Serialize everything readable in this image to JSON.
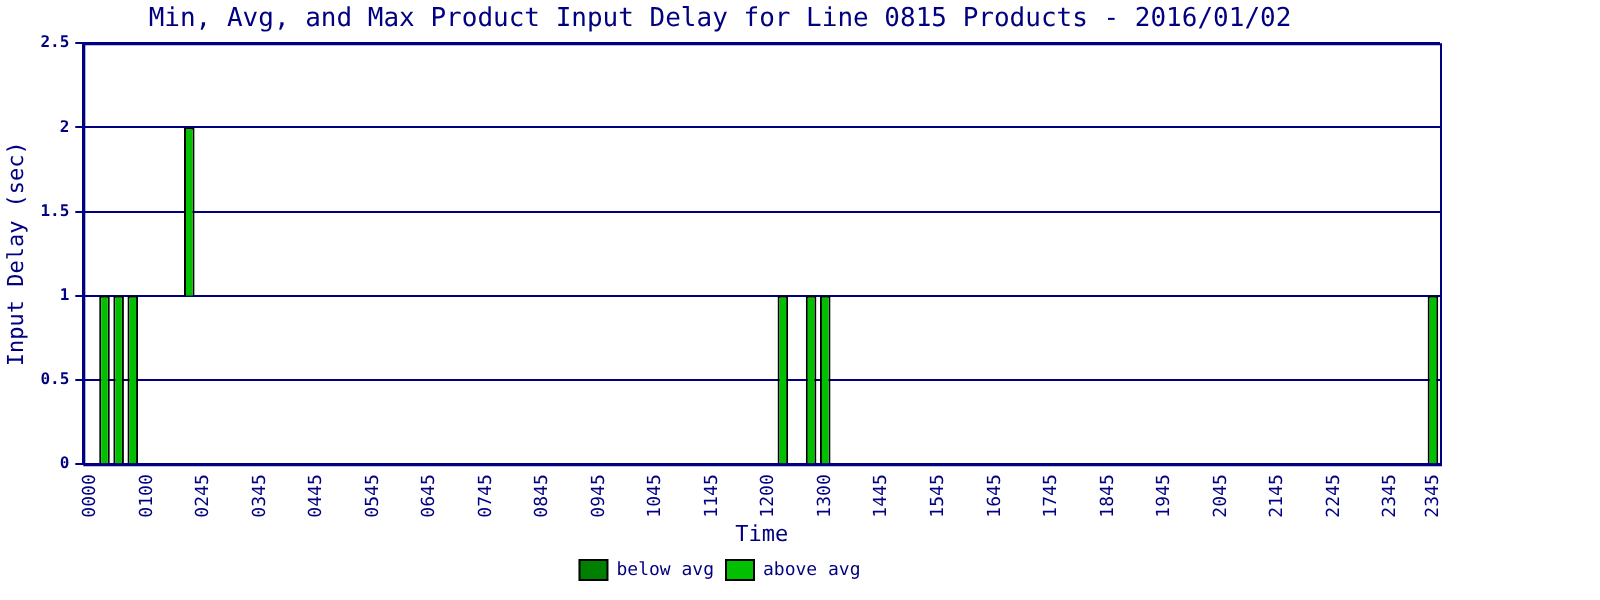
{
  "chart_data": {
    "type": "bar",
    "title": "Min, Avg, and Max Product Input Delay for Line 0815 Products - 2016/01/02",
    "xlabel": "Time",
    "ylabel": "Input Delay (sec)",
    "categories": [
      "0000",
      null,
      null,
      null,
      "0100",
      null,
      null,
      null,
      "0245",
      null,
      null,
      null,
      "0345",
      null,
      null,
      null,
      "0445",
      null,
      null,
      null,
      "0545",
      null,
      null,
      null,
      "0645",
      null,
      null,
      null,
      "0745",
      null,
      null,
      null,
      "0845",
      null,
      null,
      null,
      "0945",
      null,
      null,
      null,
      "1045",
      null,
      null,
      null,
      "1145",
      null,
      null,
      null,
      "1200",
      null,
      null,
      null,
      "1300",
      null,
      null,
      null,
      "1445",
      null,
      null,
      null,
      "1545",
      null,
      null,
      null,
      "1645",
      null,
      null,
      null,
      "1745",
      null,
      null,
      null,
      "1845",
      null,
      null,
      null,
      "1945",
      null,
      null,
      null,
      "2045",
      null,
      null,
      null,
      "2145",
      null,
      null,
      null,
      "2245",
      null,
      null,
      null,
      "2345",
      null,
      null,
      "2345"
    ],
    "series": [
      {
        "name": "below avg",
        "color": "#008000",
        "values": [
          null,
          null,
          null,
          null,
          null,
          null,
          null,
          null,
          null,
          null,
          null,
          null,
          null,
          null,
          null,
          null,
          null,
          null,
          null,
          null,
          null,
          null,
          null,
          null,
          null,
          null,
          null,
          null,
          null,
          null,
          null,
          null,
          null,
          null,
          null,
          null,
          null,
          null,
          null,
          null,
          null,
          null,
          null,
          null,
          null,
          null,
          null,
          null,
          null,
          null,
          null,
          null,
          null,
          null,
          null,
          null,
          null,
          null,
          null,
          null,
          null,
          null,
          null,
          null,
          null,
          null,
          null,
          null,
          null,
          null,
          null,
          null,
          null,
          null,
          null,
          null,
          null,
          null,
          null,
          null,
          null,
          null,
          null,
          null,
          null,
          null,
          null,
          null,
          null,
          null,
          null,
          null,
          null,
          null,
          null,
          null
        ]
      },
      {
        "name": "above avg",
        "color": "#00c000",
        "base": [
          null,
          0,
          0,
          0,
          null,
          null,
          null,
          1,
          null,
          null,
          null,
          null,
          null,
          null,
          null,
          null,
          null,
          null,
          null,
          null,
          null,
          null,
          null,
          null,
          null,
          null,
          null,
          null,
          null,
          null,
          null,
          null,
          null,
          null,
          null,
          null,
          null,
          null,
          null,
          null,
          null,
          null,
          null,
          null,
          null,
          null,
          null,
          null,
          null,
          0,
          null,
          0,
          0,
          null,
          null,
          null,
          null,
          null,
          null,
          null,
          null,
          null,
          null,
          null,
          null,
          null,
          null,
          null,
          null,
          null,
          null,
          null,
          null,
          null,
          null,
          null,
          null,
          null,
          null,
          null,
          null,
          null,
          null,
          null,
          null,
          null,
          null,
          null,
          null,
          null,
          null,
          null,
          null,
          null,
          null,
          0
        ],
        "values": [
          null,
          1,
          1,
          1,
          null,
          null,
          null,
          1,
          null,
          null,
          null,
          null,
          null,
          null,
          null,
          null,
          null,
          null,
          null,
          null,
          null,
          null,
          null,
          null,
          null,
          null,
          null,
          null,
          null,
          null,
          null,
          null,
          null,
          null,
          null,
          null,
          null,
          null,
          null,
          null,
          null,
          null,
          null,
          null,
          null,
          null,
          null,
          null,
          null,
          1,
          null,
          1,
          1,
          null,
          null,
          null,
          null,
          null,
          null,
          null,
          null,
          null,
          null,
          null,
          null,
          null,
          null,
          null,
          null,
          null,
          null,
          null,
          null,
          null,
          null,
          null,
          null,
          null,
          null,
          null,
          null,
          null,
          null,
          null,
          null,
          null,
          null,
          null,
          null,
          null,
          null,
          null,
          null,
          null,
          null,
          1
        ]
      }
    ],
    "ylim": [
      0,
      2.5
    ],
    "yticks": [
      0,
      0.5,
      1,
      1.5,
      2,
      2.5
    ],
    "grid": "y",
    "legend": "bottom"
  }
}
